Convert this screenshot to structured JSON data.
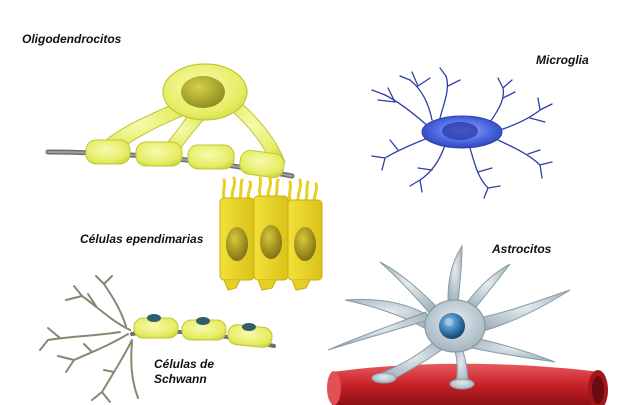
{
  "labels": {
    "oligodendrocitos": "Oligodendrocitos",
    "microglia": "Microglia",
    "ependimarias": "Células ependimarias",
    "astrocitos": "Astrocitos",
    "schwann_line1": "Células de",
    "schwann_line2": "Schwann"
  },
  "colors": {
    "glia_yellow": "#e8ef6a",
    "nucleus_olive": "#a8a628",
    "microglia_blue": "#3b5bd6",
    "astro_grey": "#b9c7cf",
    "astro_nucleus": "#2e6f9a",
    "vessel_red": "#c8262c",
    "ependymal_yellow": "#f0dc2a",
    "schwann_nucleus": "#2f5f6a"
  }
}
